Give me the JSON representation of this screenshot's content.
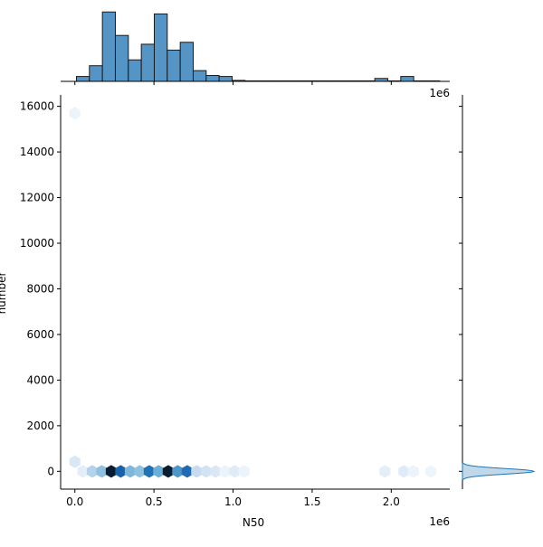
{
  "chart_data": {
    "type": "hexbin-joint",
    "xlabel": "N50",
    "ylabel": "number",
    "x_offset_label": "1e6",
    "x_tick_labels": [
      "0.0",
      "0.5",
      "1.0",
      "1.5",
      "2.0"
    ],
    "x_ticks": [
      0,
      500000,
      1000000,
      1500000,
      2000000
    ],
    "y_tick_labels": [
      "0",
      "2000",
      "4000",
      "6000",
      "8000",
      "10000",
      "12000",
      "14000",
      "16000"
    ],
    "y_ticks": [
      0,
      2000,
      4000,
      6000,
      8000,
      10000,
      12000,
      14000,
      16000
    ],
    "xlim": [
      -90000,
      2370000
    ],
    "ylim": [
      -780,
      16500
    ],
    "color": "#4c8fc2",
    "hexbins": [
      {
        "x": 0,
        "y": 15700,
        "density": 0.05
      },
      {
        "x": 0,
        "y": 420,
        "density": 0.12
      },
      {
        "x": 50000,
        "y": 0,
        "density": 0.08
      },
      {
        "x": 110000,
        "y": 0,
        "density": 0.25
      },
      {
        "x": 170000,
        "y": 0,
        "density": 0.35
      },
      {
        "x": 230000,
        "y": 0,
        "density": 1.0
      },
      {
        "x": 290000,
        "y": 0,
        "density": 0.75
      },
      {
        "x": 350000,
        "y": 0,
        "density": 0.4
      },
      {
        "x": 410000,
        "y": 0,
        "density": 0.35
      },
      {
        "x": 470000,
        "y": 0,
        "density": 0.7
      },
      {
        "x": 530000,
        "y": 0,
        "density": 0.45
      },
      {
        "x": 590000,
        "y": 0,
        "density": 1.0
      },
      {
        "x": 650000,
        "y": 0,
        "density": 0.55
      },
      {
        "x": 710000,
        "y": 0,
        "density": 0.72
      },
      {
        "x": 770000,
        "y": 0,
        "density": 0.2
      },
      {
        "x": 830000,
        "y": 0,
        "density": 0.15
      },
      {
        "x": 890000,
        "y": 0,
        "density": 0.12
      },
      {
        "x": 950000,
        "y": 0,
        "density": 0.05
      },
      {
        "x": 1010000,
        "y": 0,
        "density": 0.1
      },
      {
        "x": 1070000,
        "y": 0,
        "density": 0.05
      },
      {
        "x": 1960000,
        "y": 0,
        "density": 0.08
      },
      {
        "x": 2080000,
        "y": 0,
        "density": 0.1
      },
      {
        "x": 2140000,
        "y": 0,
        "density": 0.05
      },
      {
        "x": 2250000,
        "y": 0,
        "density": 0.04
      }
    ],
    "top_histogram": {
      "bin_width": 82000,
      "bins": [
        {
          "x0": 10000,
          "count": 5
        },
        {
          "x0": 92000,
          "count": 16
        },
        {
          "x0": 174000,
          "count": 71
        },
        {
          "x0": 256000,
          "count": 47
        },
        {
          "x0": 338000,
          "count": 22
        },
        {
          "x0": 420000,
          "count": 38
        },
        {
          "x0": 502000,
          "count": 69
        },
        {
          "x0": 584000,
          "count": 32
        },
        {
          "x0": 666000,
          "count": 40
        },
        {
          "x0": 748000,
          "count": 11
        },
        {
          "x0": 830000,
          "count": 6
        },
        {
          "x0": 912000,
          "count": 5
        },
        {
          "x0": 994000,
          "count": 1
        },
        {
          "x0": 1076000,
          "count": 0.5
        },
        {
          "x0": 1158000,
          "count": 0.5
        },
        {
          "x0": 1240000,
          "count": 0.5
        },
        {
          "x0": 1322000,
          "count": 0.5
        },
        {
          "x0": 1404000,
          "count": 0.5
        },
        {
          "x0": 1486000,
          "count": 0.5
        },
        {
          "x0": 1568000,
          "count": 0.5
        },
        {
          "x0": 1650000,
          "count": 0.5
        },
        {
          "x0": 1732000,
          "count": 0.5
        },
        {
          "x0": 1814000,
          "count": 0.5
        },
        {
          "x0": 1896000,
          "count": 3
        },
        {
          "x0": 1978000,
          "count": 0.5
        },
        {
          "x0": 2060000,
          "count": 5
        },
        {
          "x0": 2142000,
          "count": 0.5
        },
        {
          "x0": 2224000,
          "count": 0.5
        }
      ],
      "ymax": 74
    },
    "right_marginal": {
      "type": "density",
      "peak_y": 0,
      "spread_y": 120,
      "extent": 62,
      "line_color": "#1f77b4"
    }
  }
}
